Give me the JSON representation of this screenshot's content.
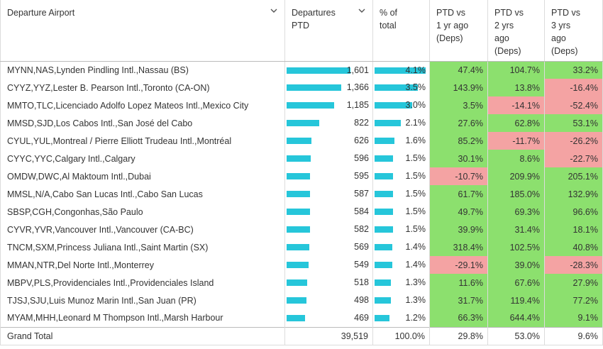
{
  "headers": {
    "airport": "Departure Airport",
    "deps": [
      "Departures",
      "PTD"
    ],
    "share": [
      "% of",
      "total"
    ],
    "vs1": [
      "PTD vs",
      "1 yr ago",
      "(Deps)"
    ],
    "vs2": [
      "PTD vs",
      "2 yrs",
      "ago",
      "(Deps)"
    ],
    "vs3": [
      "PTD vs",
      "3 yrs",
      "ago",
      "(Deps)"
    ]
  },
  "colors": {
    "bar": "#26c6da",
    "positive": "#8ce06e",
    "negative": "#f4a3a3"
  },
  "icons": {
    "sort": "chevron-down-icon"
  },
  "rows": [
    {
      "airport": "MYNN,NAS,Lynden Pindling Intl.,Nassau (BS)",
      "deps": "1,601",
      "deps_value": 1601,
      "share": "4.1%",
      "share_value": 4.1,
      "vs1": "47.4%",
      "vs2": "104.7%",
      "vs3": "33.2%"
    },
    {
      "airport": "CYYZ,YYZ,Lester B. Pearson Intl.,Toronto (CA-ON)",
      "deps": "1,366",
      "deps_value": 1366,
      "share": "3.5%",
      "share_value": 3.5,
      "vs1": "143.9%",
      "vs2": "13.8%",
      "vs3": "-16.4%"
    },
    {
      "airport": "MMTO,TLC,Licenciado Adolfo Lopez Mateos Intl.,Mexico City",
      "deps": "1,185",
      "deps_value": 1185,
      "share": "3.0%",
      "share_value": 3.0,
      "vs1": "3.5%",
      "vs2": "-14.1%",
      "vs3": "-52.4%"
    },
    {
      "airport": "MMSD,SJD,Los Cabos Intl.,San José del Cabo",
      "deps": "822",
      "deps_value": 822,
      "share": "2.1%",
      "share_value": 2.1,
      "vs1": "27.6%",
      "vs2": "62.8%",
      "vs3": "53.1%"
    },
    {
      "airport": "CYUL,YUL,Montreal / Pierre Elliott Trudeau Intl.,Montréal",
      "deps": "626",
      "deps_value": 626,
      "share": "1.6%",
      "share_value": 1.6,
      "vs1": "85.2%",
      "vs2": "-11.7%",
      "vs3": "-26.2%"
    },
    {
      "airport": "CYYC,YYC,Calgary Intl.,Calgary",
      "deps": "596",
      "deps_value": 596,
      "share": "1.5%",
      "share_value": 1.5,
      "vs1": "30.1%",
      "vs2": "8.6%",
      "vs3": "-22.7%"
    },
    {
      "airport": "OMDW,DWC,Al Maktoum Intl.,Dubai",
      "deps": "595",
      "deps_value": 595,
      "share": "1.5%",
      "share_value": 1.5,
      "vs1": "-10.7%",
      "vs2": "209.9%",
      "vs3": "205.1%"
    },
    {
      "airport": "MMSL,N/A,Cabo San Lucas Intl.,Cabo San Lucas",
      "deps": "587",
      "deps_value": 587,
      "share": "1.5%",
      "share_value": 1.5,
      "vs1": "61.7%",
      "vs2": "185.0%",
      "vs3": "132.9%"
    },
    {
      "airport": "SBSP,CGH,Congonhas,São Paulo",
      "deps": "584",
      "deps_value": 584,
      "share": "1.5%",
      "share_value": 1.5,
      "vs1": "49.7%",
      "vs2": "69.3%",
      "vs3": "96.6%"
    },
    {
      "airport": "CYVR,YVR,Vancouver Intl.,Vancouver (CA-BC)",
      "deps": "582",
      "deps_value": 582,
      "share": "1.5%",
      "share_value": 1.5,
      "vs1": "39.9%",
      "vs2": "31.4%",
      "vs3": "18.1%"
    },
    {
      "airport": "TNCM,SXM,Princess Juliana Intl.,Saint Martin (SX)",
      "deps": "569",
      "deps_value": 569,
      "share": "1.4%",
      "share_value": 1.4,
      "vs1": "318.4%",
      "vs2": "102.5%",
      "vs3": "40.8%"
    },
    {
      "airport": "MMAN,NTR,Del Norte Intl.,Monterrey",
      "deps": "549",
      "deps_value": 549,
      "share": "1.4%",
      "share_value": 1.4,
      "vs1": "-29.1%",
      "vs2": "39.0%",
      "vs3": "-28.3%"
    },
    {
      "airport": "MBPV,PLS,Providenciales Intl.,Providenciales Island",
      "deps": "518",
      "deps_value": 518,
      "share": "1.3%",
      "share_value": 1.3,
      "vs1": "11.6%",
      "vs2": "67.6%",
      "vs3": "27.9%"
    },
    {
      "airport": "TJSJ,SJU,Luis Munoz Marin Intl.,San Juan (PR)",
      "deps": "498",
      "deps_value": 498,
      "share": "1.3%",
      "share_value": 1.3,
      "vs1": "31.7%",
      "vs2": "119.4%",
      "vs3": "77.2%"
    },
    {
      "airport": "MYAM,MHH,Leonard M Thompson Intl.,Marsh Harbour",
      "deps": "469",
      "deps_value": 469,
      "share": "1.2%",
      "share_value": 1.2,
      "vs1": "66.3%",
      "vs2": "644.4%",
      "vs3": "9.1%"
    }
  ],
  "total": {
    "label": "Grand Total",
    "deps": "39,519",
    "share": "100.0%",
    "vs1": "29.8%",
    "vs2": "53.0%",
    "vs3": "9.6%"
  }
}
